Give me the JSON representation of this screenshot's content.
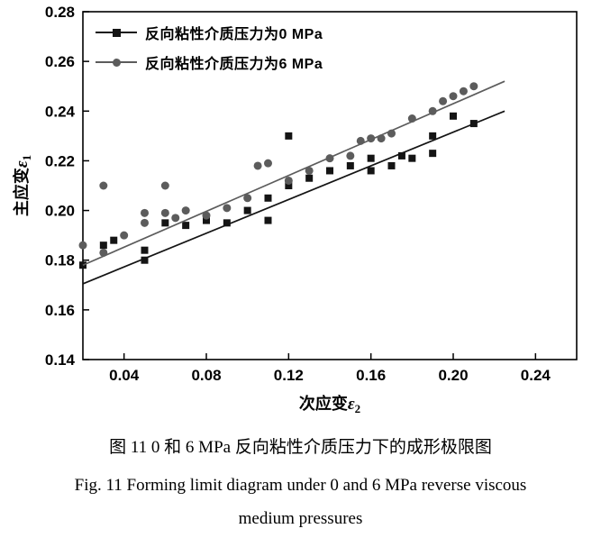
{
  "captions": {
    "chinese": "图 11  0 和 6 MPa 反向粘性介质压力下的成形极限图",
    "english_line1": "Fig. 11  Forming limit diagram under 0 and 6 MPa reverse viscous",
    "english_line2": "medium pressures"
  },
  "chart_data": {
    "type": "scatter",
    "xlabel": {
      "text": "次应变",
      "symbol": "ε",
      "sub": "2"
    },
    "ylabel": {
      "text": "主应变",
      "symbol": "ε",
      "sub": "1"
    },
    "xlim": [
      0.02,
      0.26
    ],
    "ylim": [
      0.14,
      0.28
    ],
    "xticks": {
      "values": [
        0.04,
        0.08,
        0.12,
        0.16,
        0.2,
        0.24
      ],
      "labels": [
        "0.04",
        "0.08",
        "0.12",
        "0.16",
        "0.20",
        "0.24"
      ]
    },
    "yticks": {
      "values": [
        0.14,
        0.16,
        0.18,
        0.2,
        0.22,
        0.24,
        0.26,
        0.28
      ],
      "labels": [
        "0.14",
        "0.16",
        "0.18",
        "0.20",
        "0.22",
        "0.24",
        "0.26",
        "0.28"
      ]
    },
    "grid": false,
    "legend_position": "top-left-inside",
    "series": [
      {
        "name": "反向粘性介质压力为0 MPa",
        "marker": "square",
        "color": "#141414",
        "points": [
          [
            0.02,
            0.178
          ],
          [
            0.03,
            0.186
          ],
          [
            0.035,
            0.188
          ],
          [
            0.05,
            0.18
          ],
          [
            0.05,
            0.184
          ],
          [
            0.06,
            0.195
          ],
          [
            0.07,
            0.194
          ],
          [
            0.08,
            0.196
          ],
          [
            0.09,
            0.195
          ],
          [
            0.1,
            0.2
          ],
          [
            0.11,
            0.196
          ],
          [
            0.11,
            0.205
          ],
          [
            0.12,
            0.21
          ],
          [
            0.12,
            0.23
          ],
          [
            0.13,
            0.213
          ],
          [
            0.14,
            0.216
          ],
          [
            0.15,
            0.218
          ],
          [
            0.16,
            0.216
          ],
          [
            0.16,
            0.221
          ],
          [
            0.17,
            0.218
          ],
          [
            0.175,
            0.222
          ],
          [
            0.18,
            0.221
          ],
          [
            0.19,
            0.223
          ],
          [
            0.19,
            0.23
          ],
          [
            0.2,
            0.238
          ],
          [
            0.21,
            0.235
          ]
        ],
        "fit_line": {
          "x": [
            0.02,
            0.225
          ],
          "y": [
            0.1705,
            0.24
          ]
        }
      },
      {
        "name": "反向粘性介质压力为6 MPa",
        "marker": "circle",
        "color": "#5c5c5c",
        "points": [
          [
            0.02,
            0.186
          ],
          [
            0.03,
            0.21
          ],
          [
            0.03,
            0.183
          ],
          [
            0.04,
            0.19
          ],
          [
            0.05,
            0.195
          ],
          [
            0.05,
            0.199
          ],
          [
            0.06,
            0.21
          ],
          [
            0.06,
            0.199
          ],
          [
            0.065,
            0.197
          ],
          [
            0.07,
            0.2
          ],
          [
            0.08,
            0.198
          ],
          [
            0.09,
            0.201
          ],
          [
            0.1,
            0.205
          ],
          [
            0.105,
            0.218
          ],
          [
            0.11,
            0.219
          ],
          [
            0.12,
            0.212
          ],
          [
            0.13,
            0.216
          ],
          [
            0.14,
            0.221
          ],
          [
            0.15,
            0.222
          ],
          [
            0.155,
            0.228
          ],
          [
            0.16,
            0.229
          ],
          [
            0.165,
            0.229
          ],
          [
            0.17,
            0.231
          ],
          [
            0.18,
            0.237
          ],
          [
            0.19,
            0.24
          ],
          [
            0.195,
            0.244
          ],
          [
            0.2,
            0.246
          ],
          [
            0.205,
            0.248
          ],
          [
            0.21,
            0.25
          ]
        ],
        "fit_line": {
          "x": [
            0.02,
            0.225
          ],
          "y": [
            0.178,
            0.252
          ]
        }
      }
    ]
  }
}
